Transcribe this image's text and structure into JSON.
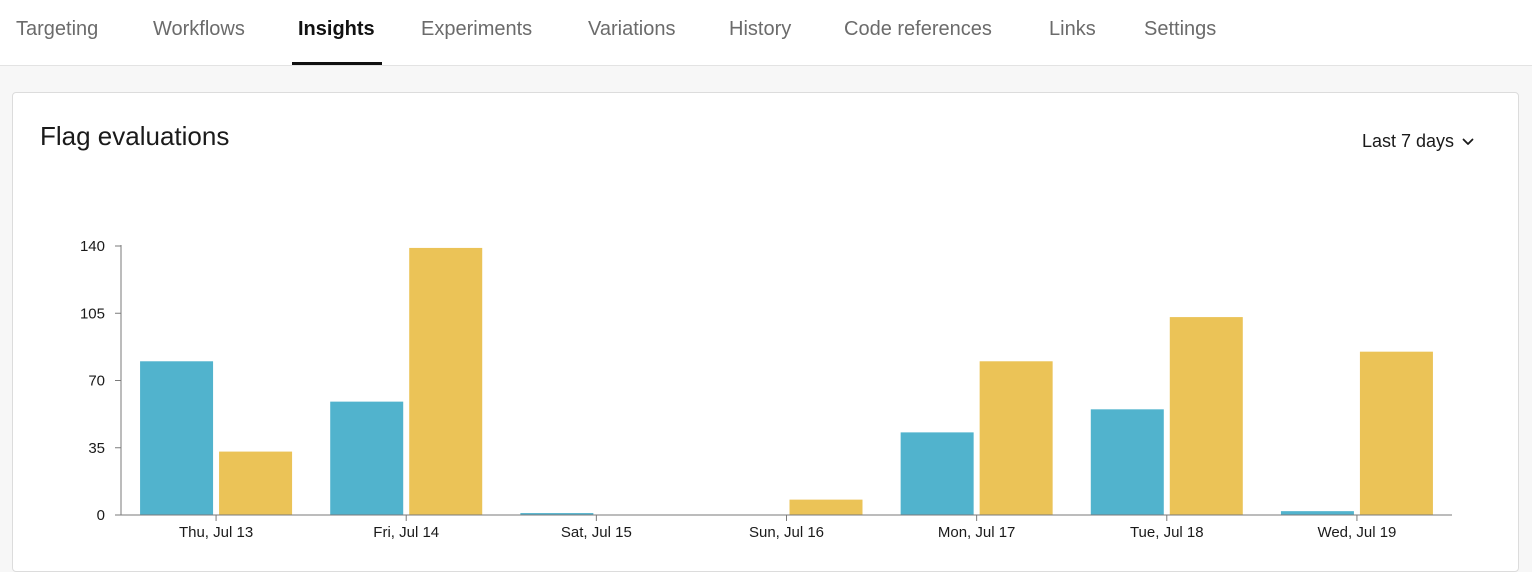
{
  "tabs": [
    {
      "label": "Targeting",
      "active": false
    },
    {
      "label": "Workflows",
      "active": false
    },
    {
      "label": "Insights",
      "active": true
    },
    {
      "label": "Experiments",
      "active": false
    },
    {
      "label": "Variations",
      "active": false
    },
    {
      "label": "History",
      "active": false
    },
    {
      "label": "Code references",
      "active": false
    },
    {
      "label": "Links",
      "active": false
    },
    {
      "label": "Settings",
      "active": false
    }
  ],
  "card": {
    "title": "Flag evaluations",
    "range_label": "Last 7 days",
    "range_icon": "chevron-down-icon"
  },
  "chart_data": {
    "type": "bar",
    "title": "",
    "xlabel": "",
    "ylabel": "",
    "categories": [
      "Thu, Jul 13",
      "Fri, Jul 14",
      "Sat, Jul 15",
      "Sun, Jul 16",
      "Mon, Jul 17",
      "Tue, Jul 18",
      "Wed, Jul 19"
    ],
    "yticks": [
      0,
      35,
      70,
      105,
      140
    ],
    "ylim": [
      0,
      140
    ],
    "grid": false,
    "series": [
      {
        "color": "#51b3cd",
        "values": [
          80,
          59,
          1,
          0,
          43,
          55,
          2
        ]
      },
      {
        "color": "#ebc357",
        "values": [
          33,
          139,
          0,
          8,
          80,
          103,
          85
        ]
      }
    ]
  }
}
